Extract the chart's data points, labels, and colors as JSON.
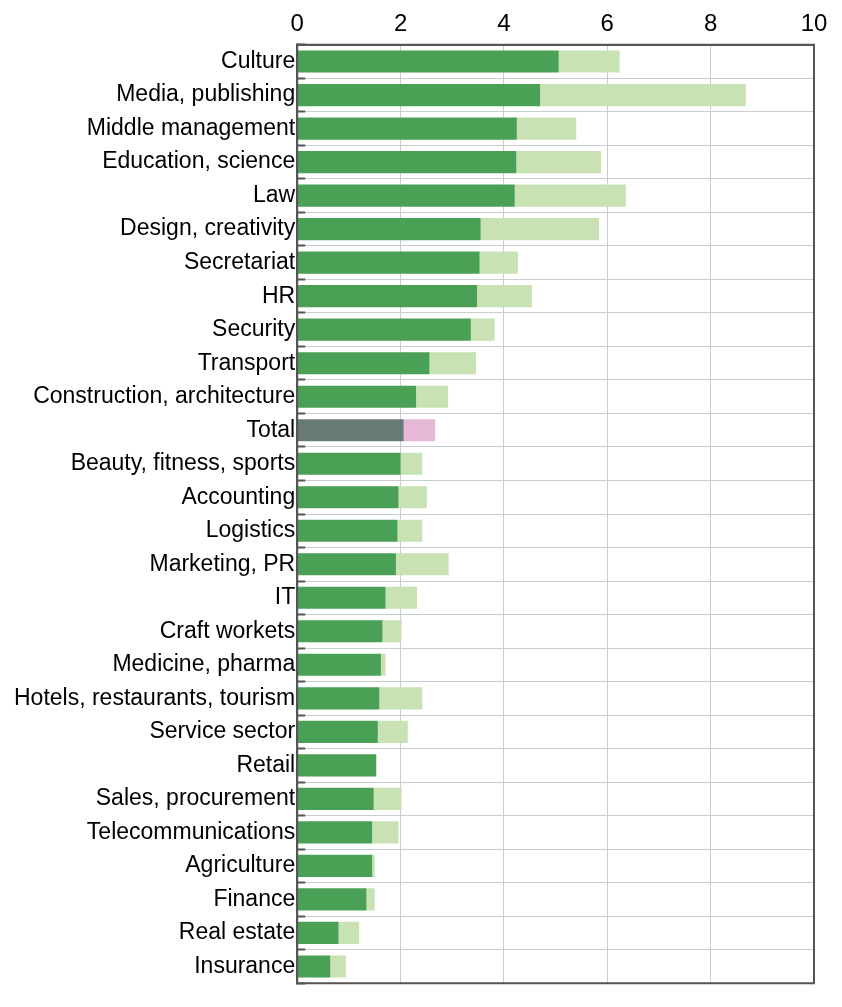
{
  "chart_data": {
    "type": "bar",
    "orientation": "horizontal",
    "stacked": true,
    "categories": [
      "Culture",
      "Media, publishing",
      "Middle management",
      "Education, science",
      "Law",
      "Design, creativity",
      "Secretariat",
      "HR",
      "Security",
      "Transport",
      "Construction, architecture",
      "Total",
      "Beauty, fitness, sports",
      "Accounting",
      "Logistics",
      "Marketing, PR",
      "IT",
      "Craft workets",
      "Medicine, pharma",
      "Hotels, restaurants, tourism",
      "Service sector",
      "Retail",
      "Sales, procurement",
      "Telecommunications",
      "Agriculture",
      "Finance",
      "Real estate",
      "Insurance"
    ],
    "series": [
      {
        "colors": [
          "#4aa155",
          "#4aa155",
          "#4aa155",
          "#4aa155",
          "#4aa155",
          "#4aa155",
          "#4aa155",
          "#4aa155",
          "#4aa155",
          "#4aa155",
          "#4aa155",
          "#687a76",
          "#4aa155",
          "#4aa155",
          "#4aa155",
          "#4aa155",
          "#4aa155",
          "#4aa155",
          "#4aa155",
          "#4aa155",
          "#4aa155",
          "#4aa155",
          "#4aa155",
          "#4aa155",
          "#4aa155",
          "#4aa155",
          "#4aa155",
          "#4aa155"
        ],
        "values": [
          5.06,
          4.7,
          4.25,
          4.24,
          4.21,
          3.55,
          3.53,
          3.48,
          3.36,
          2.56,
          2.3,
          2.06,
          2.0,
          1.96,
          1.94,
          1.91,
          1.71,
          1.65,
          1.62,
          1.59,
          1.56,
          1.53,
          1.48,
          1.45,
          1.45,
          1.34,
          0.8,
          0.64
        ]
      },
      {
        "colors": [
          "#c9e2b3",
          "#c9e2b3",
          "#c9e2b3",
          "#c9e2b3",
          "#c9e2b3",
          "#c9e2b3",
          "#c9e2b3",
          "#c9e2b3",
          "#c9e2b3",
          "#c9e2b3",
          "#c9e2b3",
          "#e4b8d6",
          "#c9e2b3",
          "#c9e2b3",
          "#c9e2b3",
          "#c9e2b3",
          "#c9e2b3",
          "#c9e2b3",
          "#c9e2b3",
          "#c9e2b3",
          "#c9e2b3",
          "#c9e2b3",
          "#c9e2b3",
          "#c9e2b3",
          "#c9e2b3",
          "#c9e2b3",
          "#c9e2b3",
          "#c9e2b3"
        ],
        "values": [
          1.18,
          3.98,
          1.15,
          1.64,
          2.15,
          2.29,
          0.74,
          1.06,
          0.46,
          0.9,
          0.62,
          0.61,
          0.42,
          0.55,
          0.48,
          1.02,
          0.61,
          0.37,
          0.09,
          0.83,
          0.58,
          0.0,
          0.54,
          0.51,
          0.05,
          0.16,
          0.4,
          0.3
        ]
      }
    ],
    "xlim": [
      0,
      10
    ],
    "xticks": [
      0,
      2,
      4,
      6,
      8,
      10
    ],
    "grid": true,
    "legend": false
  }
}
